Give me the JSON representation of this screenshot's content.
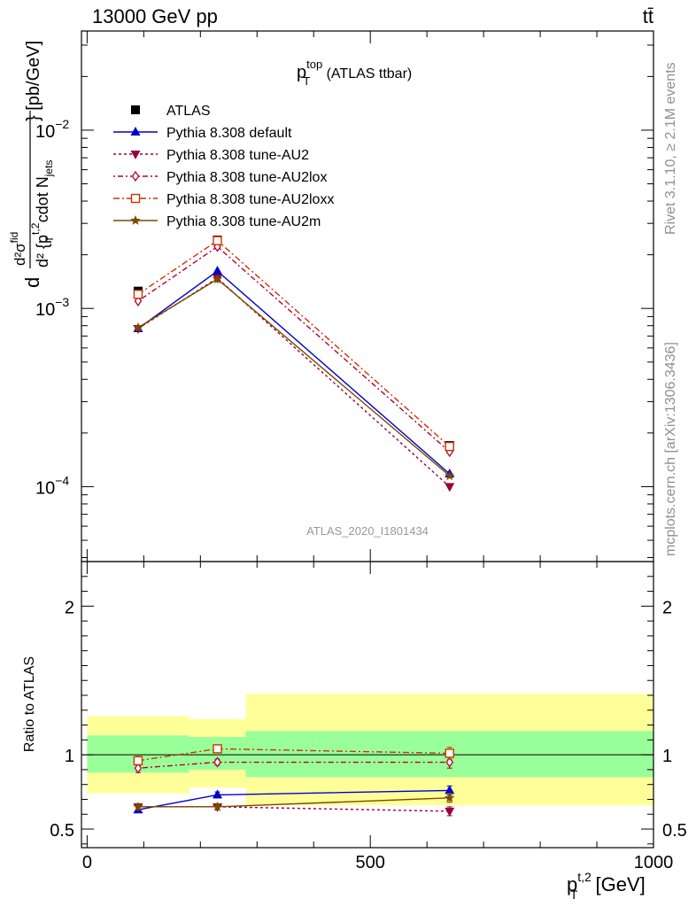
{
  "header": {
    "left": "13000 GeV pp",
    "right": "tt̄"
  },
  "side_labels": {
    "rivet": "Rivet 3.1.10, ≥ 2.1M events",
    "mcplots": "mcplots.cern.ch [arXiv:1306.3436]"
  },
  "chart_data": {
    "type": "line",
    "title": "p_T^top (ATLAS ttbar)",
    "title_main": "p",
    "title_sup": "top",
    "title_sub": "T",
    "title_rest": " (ATLAS ttbar)",
    "analysis_id": "ATLAS_2020_I1801434",
    "xlabel": "p_T^{t,2} [GeV]",
    "xlabel_main": "p",
    "xlabel_sup": "t,2",
    "xlabel_sub": "T",
    "xlabel_rest": " [GeV]",
    "ylabel": "d²σ^fid / d²{p_T^{t,2} cdot N_jets} [pb/GeV]",
    "ylabel_bracket": "} [pb/GeV]",
    "ylabel_num": "d²σ",
    "ylabel_num_sup": "fid",
    "ylabel_den": "d² {p",
    "ylabel_den_sup": "t,2",
    "ylabel_den_sub": "T",
    "ylabel_den_rest": " cdot N",
    "ylabel_den_jets": "jets",
    "ylabel_d": "d",
    "ratio_ylabel": "Ratio to ATLAS",
    "x_range": [
      -10,
      1000
    ],
    "x_ticks": [
      0,
      500,
      1000
    ],
    "x_tick_labels": [
      "0",
      "500",
      "1000"
    ],
    "main_yscale": "log",
    "main_ylim": [
      3.8e-05,
      0.036
    ],
    "main_y_ticks": [
      0.01,
      0.001,
      0.0001
    ],
    "main_y_tick_labels": [
      {
        "base": "10",
        "exp": "−2"
      },
      {
        "base": "10",
        "exp": "−3"
      },
      {
        "base": "10",
        "exp": "−4"
      }
    ],
    "ratio_ylim": [
      0.375,
      2.3
    ],
    "ratio_y_ticks": [
      0.5,
      1,
      2
    ],
    "ratio_y_tick_labels": [
      "0.5",
      "1",
      "2"
    ],
    "bins": [
      [
        0,
        180
      ],
      [
        180,
        280
      ],
      [
        280,
        1000
      ]
    ],
    "x": [
      90,
      230,
      640
    ],
    "legend_position": "top-left",
    "series": [
      {
        "name": "ATLAS",
        "color": "#000000",
        "marker": "square-filled",
        "dash": "",
        "values": [
          0.00125,
          0.00242,
          0.00017
        ],
        "ratio": [
          1,
          1,
          1
        ],
        "err_lo": [
          0.05,
          0.04,
          0.06
        ],
        "err_hi": [
          0.05,
          0.04,
          0.06
        ]
      },
      {
        "name": "Pythia 8.308 default",
        "color": "#0000cc",
        "marker": "triangle-up",
        "dash": "",
        "values": [
          0.00077,
          0.00162,
          0.000118
        ],
        "ratio": [
          0.63,
          0.73,
          0.76
        ],
        "err_lo": [
          0.02,
          0.02,
          0.03
        ],
        "err_hi": [
          0.02,
          0.02,
          0.03
        ]
      },
      {
        "name": "Pythia 8.308 tune-AU2",
        "color": "#99003c",
        "marker": "triangle-down",
        "dash": "3,3",
        "values": [
          0.00077,
          0.00148,
          0.0001
        ],
        "ratio": [
          0.65,
          0.65,
          0.62
        ],
        "err_lo": [
          0.02,
          0.02,
          0.03
        ],
        "err_hi": [
          0.02,
          0.02,
          0.03
        ]
      },
      {
        "name": "Pythia 8.308 tune-AU2lox",
        "color": "#b5002d",
        "marker": "diamond-open",
        "dash": "2,3,6,3",
        "values": [
          0.0011,
          0.00222,
          0.000157
        ],
        "ratio": [
          0.91,
          0.95,
          0.95
        ],
        "err_lo": [
          0.03,
          0.02,
          0.04
        ],
        "err_hi": [
          0.03,
          0.02,
          0.04
        ]
      },
      {
        "name": "Pythia 8.308 tune-AU2loxx",
        "color": "#cc3300",
        "marker": "square-open",
        "dash": "7,3,2,3",
        "values": [
          0.0012,
          0.0024,
          0.000168
        ],
        "ratio": [
          0.96,
          1.04,
          1.01
        ],
        "err_lo": [
          0.03,
          0.02,
          0.04
        ],
        "err_hi": [
          0.03,
          0.02,
          0.04
        ]
      },
      {
        "name": "Pythia 8.308 tune-AU2m",
        "color": "#7a4a00",
        "marker": "star",
        "dash": "",
        "values": [
          0.00078,
          0.00146,
          0.000115
        ],
        "ratio": [
          0.65,
          0.65,
          0.71
        ],
        "err_lo": [
          0.02,
          0.02,
          0.03
        ],
        "err_hi": [
          0.02,
          0.02,
          0.03
        ]
      }
    ],
    "ratio_band_inner": [
      [
        0.88,
        1.13
      ],
      [
        0.9,
        1.12
      ],
      [
        0.85,
        1.16
      ]
    ],
    "ratio_band_outer": [
      [
        0.74,
        1.26
      ],
      [
        0.78,
        1.24
      ],
      [
        0.66,
        1.41
      ]
    ],
    "band_colors": {
      "inner": "#99ff99",
      "outer": "#ffff99"
    }
  }
}
